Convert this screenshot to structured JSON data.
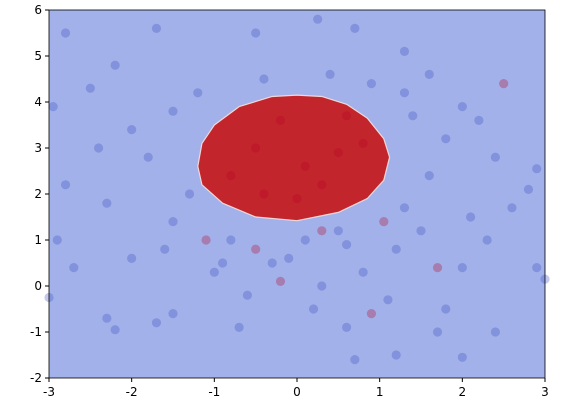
{
  "chart_data": {
    "type": "scatter",
    "xlim": [
      -3,
      3
    ],
    "ylim": [
      -2,
      6
    ],
    "xticks": [
      -3,
      -2,
      -1,
      0,
      1,
      2,
      3
    ],
    "yticks": [
      -2,
      -1,
      0,
      1,
      2,
      3,
      4,
      5,
      6
    ],
    "background_color": "#a3b1ea",
    "region": {
      "color": "#c3252d",
      "edge_color": "#f0d8d8",
      "x": [
        -1.2,
        -1.15,
        -1.0,
        -0.7,
        -0.3,
        0,
        0.3,
        0.6,
        0.85,
        1.05,
        1.12,
        1.05,
        0.85,
        0.5,
        0,
        -0.5,
        -0.9,
        -1.15
      ],
      "y": [
        2.6,
        3.1,
        3.5,
        3.9,
        4.12,
        4.15,
        4.12,
        3.95,
        3.65,
        3.2,
        2.8,
        2.3,
        1.9,
        1.6,
        1.42,
        1.5,
        1.8,
        2.2
      ]
    },
    "series": [
      {
        "color": "#3a4cc0",
        "x": [
          -2.8,
          -2.2,
          -2.95,
          -2.5,
          -2.8,
          -2.9,
          -2.7,
          -2.3,
          -2.2,
          -1.7,
          -1.5,
          -0.7,
          0.6,
          0.7,
          1.2,
          2.0,
          2.4,
          1.7,
          2.9,
          2.8,
          2.6,
          2.9,
          3.0,
          2.2,
          2.0,
          1.6,
          1.3,
          1.3,
          0.7,
          0.25,
          -0.5,
          -1.7,
          -3.0,
          1.8,
          -1.0,
          0.3,
          0.8,
          -0.3,
          1.5,
          -1.5,
          1.6,
          -1.8,
          -1.5,
          1.4,
          0.4,
          -0.4,
          2.3,
          -2.3,
          2.4,
          -2.4,
          1.2,
          -0.8,
          0.1,
          -1.2,
          0.9,
          -2.0,
          2.0,
          1.1,
          -0.6,
          0.2,
          -1.3,
          1.8,
          -2.0,
          2.1,
          -1.6,
          1.3,
          0.6,
          -0.9,
          -0.1,
          0.5
        ],
        "y": [
          5.5,
          4.8,
          3.9,
          4.3,
          2.2,
          1.0,
          0.4,
          -0.7,
          -0.95,
          -0.8,
          -0.6,
          -0.9,
          -0.9,
          -1.6,
          -1.5,
          -1.55,
          -1.0,
          -1.0,
          2.55,
          2.1,
          1.7,
          0.4,
          0.15,
          3.6,
          3.9,
          4.6,
          4.2,
          5.1,
          5.6,
          5.8,
          5.5,
          5.6,
          -0.25,
          -0.5,
          0.3,
          0.0,
          0.3,
          0.5,
          1.2,
          1.4,
          2.4,
          2.8,
          3.8,
          3.7,
          4.6,
          4.5,
          1.0,
          1.8,
          2.8,
          3.0,
          0.8,
          1.0,
          1.0,
          4.2,
          4.4,
          0.6,
          0.4,
          -0.3,
          -0.2,
          -0.5,
          2.0,
          3.2,
          3.4,
          1.5,
          0.8,
          1.7,
          0.9,
          0.5,
          0.6,
          1.2
        ]
      },
      {
        "color": "#b40426",
        "x": [
          0.1,
          -0.5,
          0.5,
          -0.2,
          0.3,
          -0.8,
          0.8,
          0.0,
          -0.4,
          0.6,
          1.7,
          -0.5,
          2.5,
          1.05,
          -1.1,
          0.9,
          0.3,
          -0.2
        ],
        "y": [
          2.6,
          3.0,
          2.9,
          3.6,
          2.2,
          2.4,
          3.1,
          1.9,
          2.0,
          3.7,
          0.4,
          0.8,
          4.4,
          1.4,
          1.0,
          -0.6,
          1.2,
          0.1
        ]
      }
    ]
  }
}
